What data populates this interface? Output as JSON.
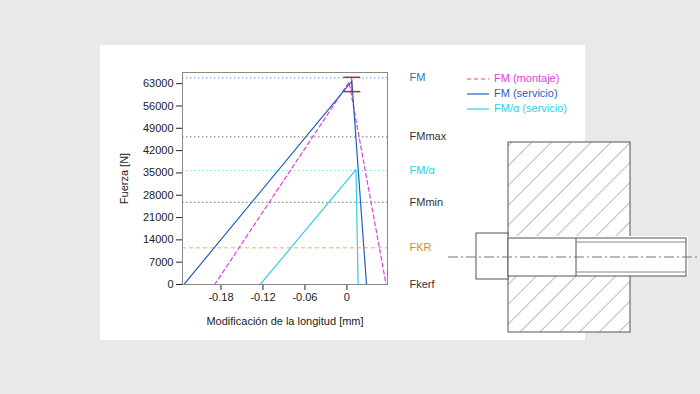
{
  "chart_data": {
    "type": "line",
    "x_label": "Modificación de la longitud [mm]",
    "y_label": "Fuerza [N]",
    "xlim": [
      -0.235,
      0.058
    ],
    "xticks": [
      -0.18,
      -0.12,
      -0.06,
      0
    ],
    "ylim": [
      0,
      66500
    ],
    "yticks": [
      0,
      7000,
      14000,
      21000,
      28000,
      35000,
      42000,
      49000,
      56000,
      63000
    ],
    "grid": false,
    "legend": "right",
    "series": [
      {
        "name": "FM (montaje)",
        "color": "#e03fd8",
        "line_style": "dashed",
        "x": [
          -0.189,
          0.003,
          0.056
        ],
        "values": [
          0,
          63500,
          0
        ]
      },
      {
        "name": "FM (servicio)",
        "color": "#1f5fbf",
        "line_style": "solid",
        "x": [
          -0.233,
          0.007,
          0.028
        ],
        "values": [
          0,
          63800,
          0
        ]
      },
      {
        "name": "FM/α (servicio)",
        "color": "#2fd0e0",
        "line_style": "solid",
        "x": [
          -0.124,
          0.013,
          0.016
        ],
        "values": [
          0,
          36000,
          0
        ]
      }
    ],
    "reference_lines": [
      {
        "label": "FM",
        "value": 64800,
        "color": "#1f6fd0",
        "line_style": "dotted"
      },
      {
        "label": "FMmax",
        "value": 46300,
        "color": "#333333",
        "line_style": "dotted"
      },
      {
        "label": "FM/α",
        "value": 35700,
        "color": "#2fd0e0",
        "line_style": "dotted"
      },
      {
        "label": "FMmin",
        "value": 25800,
        "color": "#333333",
        "line_style": "dotted"
      },
      {
        "label": "FKR",
        "value": 11500,
        "color": "#e08a20",
        "line_style": "dashed"
      },
      {
        "label": "Fkerf",
        "value": 0,
        "color": "#333333",
        "line_style": "dotted"
      }
    ],
    "error_bar": {
      "x": 0.007,
      "low": 60500,
      "high": 65000,
      "color": "#b03030"
    }
  }
}
